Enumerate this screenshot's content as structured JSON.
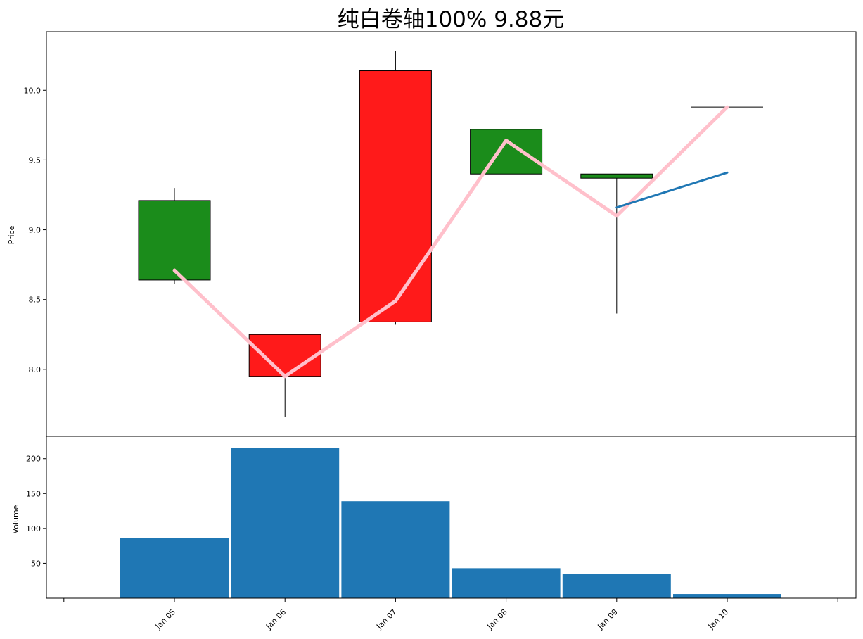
{
  "chart_data": {
    "type": "candlestick",
    "title": "纯白卷轴100%  9.88元",
    "x_categories": [
      "Jan 05",
      "Jan 06",
      "Jan 07",
      "Jan 08",
      "Jan 09",
      "Jan 10"
    ],
    "price_panel": {
      "ylabel": "Price",
      "yticks": [
        8.0,
        8.5,
        9.0,
        9.5,
        10.0
      ],
      "ylim": [
        7.52,
        10.42
      ],
      "candles": [
        {
          "date": "Jan 05",
          "open": 8.64,
          "close": 9.21,
          "high": 9.3,
          "low": 8.61,
          "color": "#1b8c1b"
        },
        {
          "date": "Jan 06",
          "open": 8.25,
          "close": 7.95,
          "high": 8.25,
          "low": 7.66,
          "color": "#ff1a1a"
        },
        {
          "date": "Jan 07",
          "open": 10.14,
          "close": 8.34,
          "high": 10.28,
          "low": 8.32,
          "color": "#ff1a1a"
        },
        {
          "date": "Jan 08",
          "open": 9.4,
          "close": 9.72,
          "high": 9.72,
          "low": 9.4,
          "color": "#1b8c1b"
        },
        {
          "date": "Jan 09",
          "open": 9.37,
          "close": 9.4,
          "high": 9.4,
          "low": 8.4,
          "color": "#1b8c1b"
        },
        {
          "date": "Jan 10",
          "open": 9.88,
          "close": 9.88,
          "high": 9.88,
          "low": 9.88,
          "color": "#1b8c1b"
        }
      ],
      "lines": [
        {
          "color": "#ffc0cb",
          "points": [
            [
              "Jan 05",
              8.71
            ],
            [
              "Jan 06",
              7.95
            ],
            [
              "Jan 07",
              8.49
            ],
            [
              "Jan 08",
              9.64
            ],
            [
              "Jan 09",
              9.1
            ],
            [
              "Jan 10",
              9.88
            ]
          ]
        },
        {
          "color": "#1f77b4",
          "points": [
            [
              "Jan 09",
              9.16
            ],
            [
              "Jan 10",
              9.41
            ]
          ]
        }
      ]
    },
    "volume_panel": {
      "ylabel": "Volume",
      "yticks": [
        50,
        100,
        150,
        200
      ],
      "ylim": [
        0,
        232
      ],
      "bar_color": "#1f77b4",
      "values": [
        86,
        215,
        139,
        43,
        35,
        6
      ]
    }
  }
}
